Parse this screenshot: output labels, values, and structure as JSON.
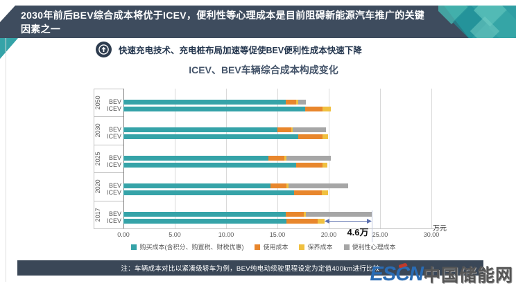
{
  "header": {
    "title": "2030年前后BEV综合成本将优于ICEV，便利性等心理成本是目前阻碍新能源汽车推广的关键因素之一"
  },
  "callout": {
    "icon": "circle-arrow-up-icon",
    "text": "快速充电技术、充电桩布局加速等促使BEV便利性成本快速下降"
  },
  "chart_data": {
    "type": "bar",
    "orientation": "horizontal",
    "stacked": true,
    "title": "ICEV、BEV车辆综合成本构成变化",
    "unit_label": "万元",
    "xlim": [
      0,
      30
    ],
    "x_ticks": [
      "0.00",
      "5.00",
      "10.00",
      "15.00",
      "20.00",
      "25.00",
      "30.00"
    ],
    "grid": true,
    "legend_position": "bottom",
    "series_names": [
      "购买成本(含积分、购置税、财税优惠)",
      "使用成本",
      "保养成本",
      "便利性心理成本"
    ],
    "series_colors": [
      "#35a3a8",
      "#e8862c",
      "#f0c040",
      "#a6a6a6"
    ],
    "groups": [
      {
        "year": "2050",
        "rows": [
          {
            "label": "BEV",
            "values": [
              15.8,
              1.0,
              0.2,
              0.8
            ]
          },
          {
            "label": "ICEV",
            "values": [
              17.7,
              1.7,
              0.8,
              0
            ]
          }
        ]
      },
      {
        "year": "2030",
        "rows": [
          {
            "label": "BEV",
            "values": [
              15.0,
              1.35,
              0.15,
              3.2
            ]
          },
          {
            "label": "ICEV",
            "values": [
              17.0,
              2.4,
              0.5,
              0
            ]
          }
        ]
      },
      {
        "year": "2025",
        "rows": [
          {
            "label": "BEV",
            "values": [
              14.1,
              1.6,
              0.2,
              4.3
            ]
          },
          {
            "label": "ICEV",
            "values": [
              16.8,
              2.6,
              0.5,
              0
            ]
          }
        ]
      },
      {
        "year": "2020",
        "rows": [
          {
            "label": "BEV",
            "values": [
              14.3,
              1.6,
              0.2,
              5.8
            ]
          },
          {
            "label": "ICEV",
            "values": [
              16.6,
              2.7,
              0.6,
              0
            ]
          }
        ]
      },
      {
        "year": "2017",
        "rows": [
          {
            "label": "BEV",
            "values": [
              15.8,
              1.8,
              0.2,
              6.4
            ]
          },
          {
            "label": "ICEV",
            "values": [
              15.9,
              3.0,
              0.7,
              0
            ]
          }
        ]
      }
    ],
    "annotation": {
      "label": "4.6万",
      "group": "2017",
      "row": "ICEV",
      "from": 19.6,
      "to": 24.2
    }
  },
  "footer": {
    "note": "注：车辆成本对比以紧凑级轿车为例，BEV纯电动续驶里程设定为定值400km进行比较"
  },
  "logo": {
    "text_en": "ESCN",
    "text_cn": "中国储能网",
    "en_color": "#2a6cb4",
    "accent_color": "#c03a2b"
  }
}
